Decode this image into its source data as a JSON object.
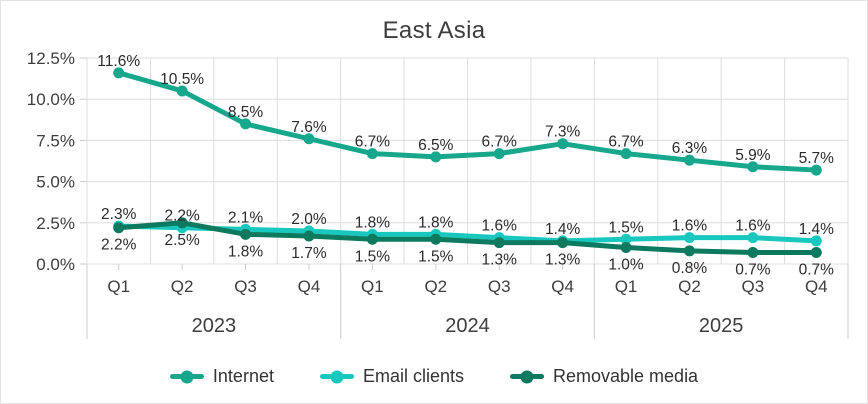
{
  "title": "East Asia",
  "chart_data": {
    "type": "line",
    "title": "East Asia",
    "x_groups": [
      {
        "label": "2023",
        "quarters": [
          "Q1",
          "Q2",
          "Q3",
          "Q4"
        ]
      },
      {
        "label": "2024",
        "quarters": [
          "Q1",
          "Q2",
          "Q3",
          "Q4"
        ]
      },
      {
        "label": "2025",
        "quarters": [
          "Q1",
          "Q2",
          "Q3",
          "Q4"
        ]
      }
    ],
    "categories": [
      "Q1 2023",
      "Q2 2023",
      "Q3 2023",
      "Q4 2023",
      "Q1 2024",
      "Q2 2024",
      "Q3 2024",
      "Q4 2024",
      "Q1 2025",
      "Q2 2025",
      "Q3 2025",
      "Q4 2025"
    ],
    "series": [
      {
        "name": "Internet",
        "color": "#16A78C",
        "label_position": "above",
        "values": [
          11.6,
          10.5,
          8.5,
          7.6,
          6.7,
          6.5,
          6.7,
          7.3,
          6.7,
          6.3,
          5.9,
          5.7
        ]
      },
      {
        "name": "Email clients",
        "color": "#18C8BE",
        "label_position": "above",
        "values": [
          2.3,
          2.2,
          2.1,
          2.0,
          1.8,
          1.8,
          1.6,
          1.4,
          1.5,
          1.6,
          1.6,
          1.4
        ]
      },
      {
        "name": "Removable media",
        "color": "#0D7A60",
        "label_position": "below",
        "values": [
          2.2,
          2.5,
          1.8,
          1.7,
          1.5,
          1.5,
          1.3,
          1.3,
          1.0,
          0.8,
          0.7,
          0.7
        ]
      }
    ],
    "ylim": [
      0,
      12.5
    ],
    "yticks": [
      0,
      2.5,
      5,
      7.5,
      10,
      12.5
    ],
    "ytick_labels": [
      "0.0%",
      "2.5%",
      "5.0%",
      "7.5%",
      "10.0%",
      "12.5%"
    ],
    "grid": true,
    "legend_position": "bottom",
    "colors": {
      "grid": "#dddddd",
      "axis": "#cccccc",
      "axis_text": "#3d3d3d",
      "data_label": "#2b2b2b"
    }
  }
}
